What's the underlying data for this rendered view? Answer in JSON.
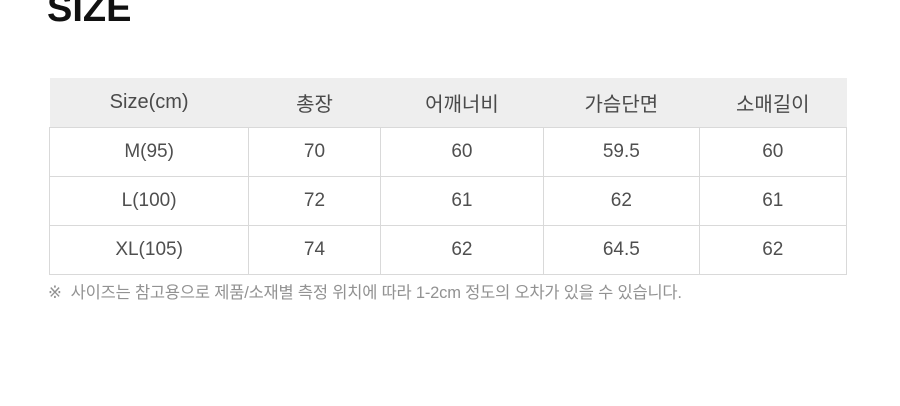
{
  "page": {
    "title": "SIZE"
  },
  "table": {
    "headers": [
      "Size(cm)",
      "총장",
      "어깨너비",
      "가슴단면",
      "소매길이"
    ],
    "rows": [
      [
        "M(95)",
        "70",
        "60",
        "59.5",
        "60"
      ],
      [
        "L(100)",
        "72",
        "61",
        "62",
        "61"
      ],
      [
        "XL(105)",
        "74",
        "62",
        "64.5",
        "62"
      ]
    ]
  },
  "footnote": {
    "marker": "※",
    "text": "사이즈는 참고용으로 제품/소재별 측정 위치에 따라 1-2cm 정도의 오차가 있을 수 있습니다."
  },
  "colors": {
    "header_bg": "#eeeeee",
    "border": "#d9d9d9",
    "cell_text": "#4f4f4f",
    "footnote_text": "#929292",
    "title_text": "#111111"
  }
}
